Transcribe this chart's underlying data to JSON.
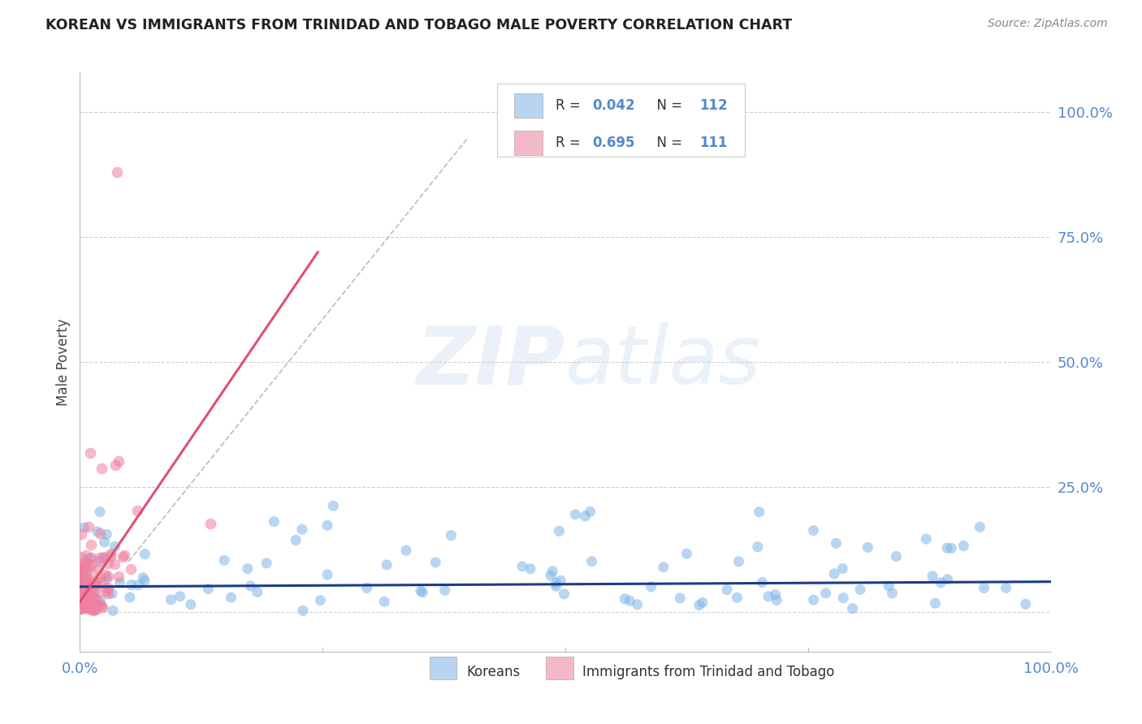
{
  "title": "KOREAN VS IMMIGRANTS FROM TRINIDAD AND TOBAGO MALE POVERTY CORRELATION CHART",
  "source": "Source: ZipAtlas.com",
  "ylabel": "Male Poverty",
  "ytick_labels": [
    "",
    "25.0%",
    "50.0%",
    "75.0%",
    "100.0%"
  ],
  "ytick_vals": [
    0.0,
    0.25,
    0.5,
    0.75,
    1.0
  ],
  "xlim": [
    0.0,
    1.0
  ],
  "ylim": [
    -0.08,
    1.08
  ],
  "korean_R": 0.042,
  "korean_N": 112,
  "trinidad_R": 0.695,
  "trinidad_N": 111,
  "korean_color": "#7EB5E8",
  "trinidad_color": "#F080A0",
  "korean_line_color": "#1a3c8a",
  "trinidad_line_color": "#E05070",
  "background_color": "#ffffff",
  "legend_color_korean": "#b8d4f0",
  "legend_color_trinidad": "#f4b8c8",
  "axis_color": "#5588cc",
  "watermark_color": "#c8d8f0"
}
